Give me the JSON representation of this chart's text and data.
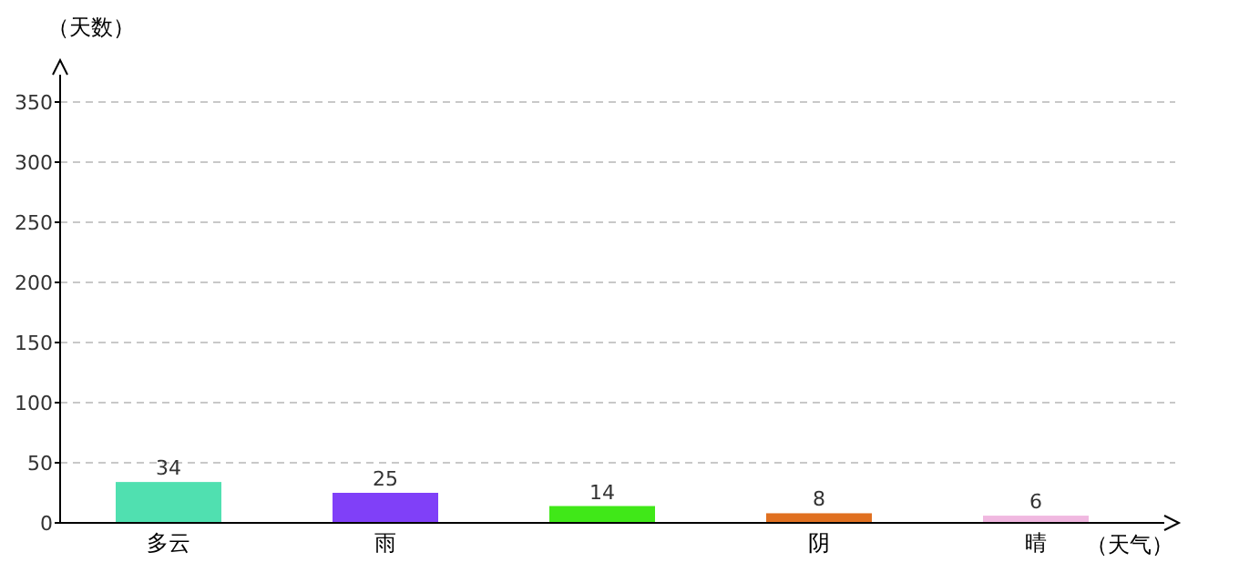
{
  "chart_data": {
    "type": "bar",
    "xlabel": "（天气）",
    "ylabel": "（天数）",
    "categories": [
      "多云",
      "雨",
      null,
      "阴",
      "晴"
    ],
    "values": [
      34,
      25,
      14,
      8,
      6
    ],
    "colors": [
      "#50e0b0",
      "#8040f8",
      "#40e818",
      "#e07020",
      "#f0b8e0"
    ],
    "ylim": [
      0,
      350
    ],
    "yticks": [
      0,
      50,
      100,
      150,
      200,
      250,
      300,
      350
    ],
    "grid": "y",
    "data_labels": true
  }
}
